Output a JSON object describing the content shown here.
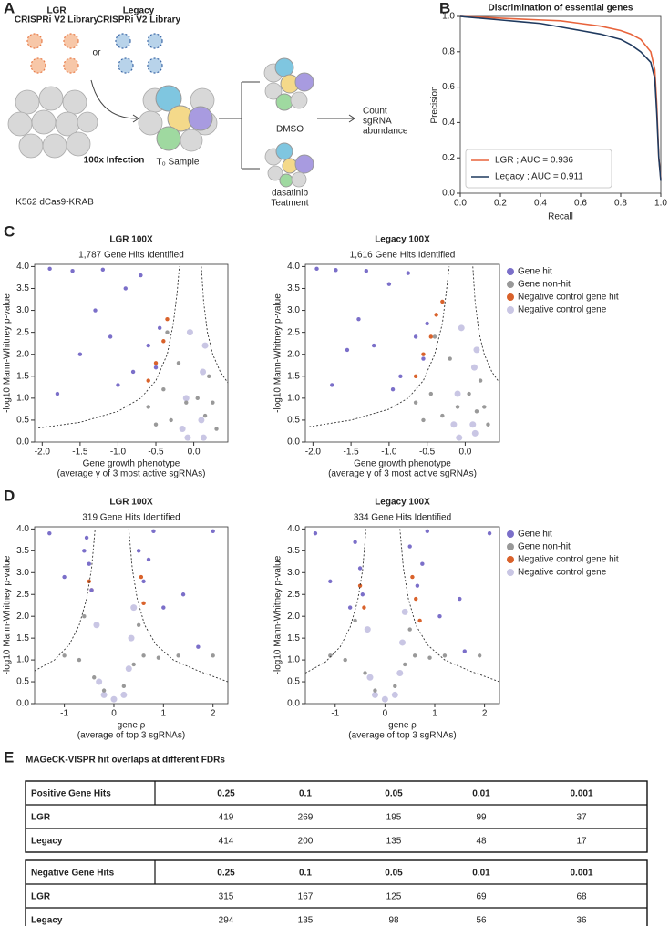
{
  "panel_labels": [
    "A",
    "B",
    "C",
    "D",
    "E"
  ],
  "diagram": {
    "lgr": "LGR",
    "lgr_library": "CRISPRi V2 Library",
    "legacy": "Legacy",
    "legacy_library": "CRISPRi V2 Library",
    "or": "or",
    "infection": "100x Infection",
    "cells": "K562 dCas9-KRAB",
    "t0": "T₀ Sample",
    "dmso": "DMSO",
    "dasatinib": "dasatinib",
    "treatment": "Teatment",
    "count": [
      "Count",
      "sgRNA",
      "abundance"
    ]
  },
  "chart_data": [
    {
      "type": "line",
      "title": "Discrimination of essential genes",
      "x_label": "Recall",
      "y_label": "Precision",
      "x": [
        0,
        0.1,
        0.2,
        0.3,
        0.4,
        0.5,
        0.6,
        0.7,
        0.8,
        0.85,
        0.9,
        0.95,
        0.97,
        0.98,
        0.99,
        1.0
      ],
      "series": [
        {
          "name": "LGR ; AUC = 0.936",
          "color": "#e8643c",
          "values": [
            1,
            0.995,
            0.99,
            0.985,
            0.98,
            0.975,
            0.96,
            0.945,
            0.92,
            0.9,
            0.87,
            0.8,
            0.7,
            0.5,
            0.2,
            0.08
          ]
        },
        {
          "name": "Legacy ; AUC = 0.911",
          "color": "#1f3a5f",
          "values": [
            1,
            0.99,
            0.98,
            0.97,
            0.96,
            0.94,
            0.92,
            0.9,
            0.87,
            0.84,
            0.8,
            0.74,
            0.65,
            0.45,
            0.2,
            0.07
          ]
        }
      ],
      "xlim": [
        0,
        1
      ],
      "ylim": [
        0,
        1
      ],
      "xticks": [
        {
          "value": 0,
          "label": "0.0"
        },
        0.2,
        0.4,
        0.6,
        0.8,
        {
          "value": 1,
          "label": "1.0"
        }
      ],
      "yticks": [
        {
          "value": 0,
          "label": "0.0"
        },
        0.2,
        0.4,
        0.6,
        0.8,
        {
          "value": 1,
          "label": "1.0"
        }
      ],
      "legend": "lower left"
    },
    {
      "type": "scatter",
      "title": "LGR 100X",
      "subtitle": "1,787 Gene Hits Identified",
      "x_label": "Gene growth phenotype",
      "x_sublabel": "(average γ of 3 most active sgRNAs)",
      "y_label": "-log10 Mann-Whitney p-value",
      "xlim": [
        -2.1,
        0.45
      ],
      "ylim": [
        0,
        4.05
      ],
      "xticks": [
        {
          "value": -2,
          "label": "-2.0"
        },
        -1.5,
        {
          "value": -1,
          "label": "-1.0"
        },
        -0.5,
        {
          "value": 0,
          "label": "0.0"
        }
      ],
      "yticks": [
        {
          "value": 0,
          "label": "0.0"
        },
        0.5,
        {
          "value": 1,
          "label": "1.0"
        },
        1.5,
        {
          "value": 2,
          "label": "2.0"
        },
        2.5,
        {
          "value": 3,
          "label": "3.0"
        },
        3.5,
        {
          "value": 4,
          "label": "4.0"
        }
      ],
      "series": [
        {
          "color": "#7b6fc9",
          "x": [
            -1.9,
            -1.6,
            -1.3,
            -1.1,
            -0.9,
            -0.8,
            -0.6,
            -0.5,
            -1.5,
            -1.0,
            -0.7,
            -0.45,
            -1.8,
            -1.2
          ],
          "values": [
            3.95,
            3.9,
            3.0,
            2.4,
            3.5,
            1.6,
            2.2,
            1.7,
            2.0,
            1.3,
            3.8,
            2.6,
            1.1,
            3.93
          ]
        },
        {
          "color": "#999999",
          "x": [
            -0.6,
            -0.4,
            -0.3,
            -0.2,
            -0.1,
            0.15,
            0.2,
            0.3,
            -0.35,
            -0.5,
            0.05,
            0.25
          ],
          "values": [
            0.8,
            1.2,
            0.5,
            1.8,
            0.9,
            0.6,
            1.5,
            0.3,
            2.5,
            0.4,
            1.0,
            0.9
          ]
        },
        {
          "color": "#d9622b",
          "x": [
            -0.6,
            -0.5,
            -0.4,
            -0.35
          ],
          "values": [
            1.4,
            1.8,
            2.3,
            2.8
          ]
        },
        {
          "color": "#c9c6e4",
          "x": [
            -0.15,
            -0.1,
            -0.05,
            0.1,
            0.12,
            0.15,
            -0.08,
            0.13
          ],
          "values": [
            0.3,
            1.0,
            2.5,
            0.5,
            1.6,
            2.2,
            0.1,
            0.1
          ]
        }
      ],
      "curves": [
        {
          "x": [
            -2.05,
            -1.5,
            -1.0,
            -0.7,
            -0.5,
            -0.35,
            -0.27,
            -0.22,
            -0.19
          ],
          "values": [
            0.32,
            0.45,
            0.7,
            1.0,
            1.4,
            2.0,
            2.7,
            3.4,
            4.0
          ]
        },
        {
          "x": [
            0.1,
            0.13,
            0.18,
            0.25,
            0.35,
            0.45
          ],
          "values": [
            4.0,
            3.2,
            2.5,
            2.0,
            1.6,
            1.35
          ]
        }
      ]
    },
    {
      "type": "scatter",
      "title": "Legacy 100X",
      "subtitle": "1,616 Gene Hits Identified",
      "x_label": "Gene growth phenotype",
      "x_sublabel": "(average γ of 3 most active sgRNAs)",
      "y_label": "-log10 Mann-Whitney p-value",
      "xlim": [
        -2.1,
        0.45
      ],
      "ylim": [
        0,
        4.05
      ],
      "xticks": [
        {
          "value": -2,
          "label": "-2.0"
        },
        -1.5,
        {
          "value": -1,
          "label": "-1.0"
        },
        -0.5,
        {
          "value": 0,
          "label": "0.0"
        }
      ],
      "yticks": [
        {
          "value": 0,
          "label": "0.0"
        },
        0.5,
        {
          "value": 1,
          "label": "1.0"
        },
        1.5,
        {
          "value": 2,
          "label": "2.0"
        },
        2.5,
        {
          "value": 3,
          "label": "3.0"
        },
        3.5,
        {
          "value": 4,
          "label": "4.0"
        }
      ],
      "series": [
        {
          "name": "Gene hit",
          "color": "#7b6fc9",
          "x": [
            -1.95,
            -1.7,
            -1.4,
            -1.2,
            -1.0,
            -0.85,
            -0.65,
            -0.55,
            -1.55,
            -0.95,
            -0.75,
            -0.5,
            -1.75,
            -1.3
          ],
          "values": [
            3.95,
            3.92,
            2.8,
            2.2,
            3.6,
            1.5,
            2.4,
            1.9,
            2.1,
            1.2,
            3.85,
            2.7,
            1.3,
            3.9
          ]
        },
        {
          "name": "Gene non-hit",
          "color": "#999999",
          "x": [
            -0.65,
            -0.45,
            -0.3,
            -0.2,
            -0.1,
            0.15,
            0.2,
            0.3,
            -0.4,
            -0.55,
            0.05,
            0.25
          ],
          "values": [
            0.9,
            1.1,
            0.6,
            1.9,
            0.8,
            0.7,
            1.4,
            0.4,
            2.4,
            0.5,
            1.1,
            0.8
          ]
        },
        {
          "name": "Negative control gene hit",
          "color": "#d9622b",
          "x": [
            -0.65,
            -0.55,
            -0.45,
            -0.38,
            -0.3
          ],
          "values": [
            1.5,
            2.0,
            2.4,
            2.9,
            3.2
          ]
        },
        {
          "name": "Negative control gene",
          "color": "#c9c6e4",
          "x": [
            -0.15,
            -0.1,
            -0.05,
            0.1,
            0.12,
            0.15,
            -0.08,
            0.13
          ],
          "values": [
            0.4,
            1.1,
            2.6,
            0.4,
            1.7,
            2.1,
            0.1,
            0.2
          ]
        }
      ],
      "curves": [
        {
          "x": [
            -2.05,
            -1.5,
            -1.0,
            -0.75,
            -0.55,
            -0.4,
            -0.3,
            -0.25,
            -0.21
          ],
          "values": [
            0.35,
            0.5,
            0.75,
            1.0,
            1.4,
            2.0,
            2.7,
            3.4,
            4.0
          ]
        },
        {
          "x": [
            0.1,
            0.13,
            0.18,
            0.25,
            0.35,
            0.45
          ],
          "values": [
            4.0,
            3.2,
            2.5,
            2.0,
            1.6,
            1.35
          ]
        }
      ],
      "legend": "right"
    },
    {
      "type": "scatter",
      "title": "LGR 100X",
      "subtitle": "319 Gene Hits Identified",
      "x_label": "gene ρ",
      "x_sublabel": "(average of top 3 sgRNAs)",
      "y_label": "-log10 Mann-Whitney p-value",
      "xlim": [
        -1.6,
        2.3
      ],
      "ylim": [
        0,
        4.05
      ],
      "xticks": [
        -1,
        0,
        1,
        2
      ],
      "yticks": [
        {
          "value": 0,
          "label": "0.0"
        },
        0.5,
        {
          "value": 1,
          "label": "1.0"
        },
        1.5,
        {
          "value": 2,
          "label": "2.0"
        },
        2.5,
        {
          "value": 3,
          "label": "3.0"
        },
        3.5,
        {
          "value": 4,
          "label": "4.0"
        }
      ],
      "series": [
        {
          "color": "#7b6fc9",
          "x": [
            -1.3,
            -0.55,
            -0.5,
            -0.45,
            -0.6,
            0.5,
            0.6,
            0.8,
            1.0,
            1.4,
            2.0,
            0.7,
            1.7,
            -1.0
          ],
          "values": [
            3.9,
            3.8,
            3.2,
            2.6,
            3.5,
            3.5,
            2.8,
            3.95,
            2.2,
            2.5,
            3.95,
            3.3,
            1.3,
            2.9
          ]
        },
        {
          "color": "#999999",
          "x": [
            -1.0,
            -0.7,
            -0.4,
            -0.2,
            0.2,
            0.4,
            0.6,
            0.9,
            1.3,
            2.0,
            -0.6,
            0.5
          ],
          "values": [
            1.1,
            1.0,
            0.6,
            0.3,
            0.4,
            0.9,
            1.1,
            1.05,
            1.1,
            1.1,
            2.0,
            1.8
          ]
        },
        {
          "color": "#d9622b",
          "x": [
            -0.5,
            -0.45,
            0.55,
            0.6
          ],
          "values": [
            2.8,
            2.6,
            2.9,
            2.3
          ]
        },
        {
          "color": "#c9c6e4",
          "x": [
            -0.3,
            -0.2,
            0.0,
            0.2,
            0.35,
            0.4,
            -0.35,
            0.3
          ],
          "values": [
            0.5,
            0.2,
            0.1,
            0.2,
            1.5,
            2.2,
            1.8,
            0.8
          ]
        }
      ],
      "curves": [
        {
          "x": [
            -1.6,
            -1.2,
            -0.9,
            -0.7,
            -0.55,
            -0.45,
            -0.38
          ],
          "values": [
            0.75,
            1.0,
            1.35,
            1.8,
            2.4,
            3.1,
            4.0
          ]
        },
        {
          "x": [
            0.3,
            0.37,
            0.47,
            0.62,
            0.85,
            1.2,
            1.7,
            2.3
          ],
          "values": [
            4.0,
            3.1,
            2.4,
            1.8,
            1.35,
            1.0,
            0.75,
            0.5
          ]
        }
      ]
    },
    {
      "type": "scatter",
      "title": "Legacy 100X",
      "subtitle": "334 Gene Hits Identified",
      "x_label": "gene ρ",
      "x_sublabel": "(average of top 3 sgRNAs)",
      "y_label": "-log10 Mann-Whitney p-value",
      "xlim": [
        -1.6,
        2.3
      ],
      "ylim": [
        0,
        4.05
      ],
      "xticks": [
        -1,
        0,
        1,
        2
      ],
      "yticks": [
        {
          "value": 0,
          "label": "0.0"
        },
        0.5,
        {
          "value": 1,
          "label": "1.0"
        },
        1.5,
        {
          "value": 2,
          "label": "2.0"
        },
        2.5,
        {
          "value": 3,
          "label": "3.0"
        },
        3.5,
        {
          "value": 4,
          "label": "4.0"
        }
      ],
      "series": [
        {
          "name": "Gene hit",
          "color": "#7b6fc9",
          "x": [
            -1.4,
            -0.6,
            -0.5,
            -0.45,
            -0.7,
            0.5,
            0.65,
            0.85,
            1.1,
            1.5,
            2.1,
            0.75,
            1.6,
            -1.1
          ],
          "values": [
            3.9,
            3.7,
            3.1,
            2.5,
            2.2,
            3.6,
            2.7,
            3.95,
            2.0,
            2.4,
            3.9,
            3.2,
            1.2,
            2.8
          ]
        },
        {
          "name": "Gene non-hit",
          "color": "#999999",
          "x": [
            -1.1,
            -0.8,
            -0.4,
            -0.2,
            0.2,
            0.4,
            0.6,
            0.9,
            1.2,
            1.9,
            -0.6,
            0.5
          ],
          "values": [
            1.1,
            1.0,
            0.7,
            0.3,
            0.4,
            0.9,
            1.1,
            1.05,
            1.1,
            1.1,
            1.9,
            1.7
          ]
        },
        {
          "name": "Negative control gene hit",
          "color": "#d9622b",
          "x": [
            -0.5,
            -0.42,
            0.55,
            0.62,
            0.7
          ],
          "values": [
            2.7,
            2.2,
            2.9,
            2.4,
            1.9
          ]
        },
        {
          "name": "Negative control gene",
          "color": "#c9c6e4",
          "x": [
            -0.3,
            -0.2,
            0.0,
            0.2,
            0.35,
            0.4,
            -0.35,
            0.3
          ],
          "values": [
            0.6,
            0.2,
            0.1,
            0.2,
            1.4,
            2.1,
            1.7,
            0.7
          ]
        }
      ],
      "curves": [
        {
          "x": [
            -1.6,
            -1.2,
            -0.9,
            -0.7,
            -0.55,
            -0.45,
            -0.38
          ],
          "values": [
            0.7,
            0.95,
            1.3,
            1.75,
            2.35,
            3.05,
            4.0
          ]
        },
        {
          "x": [
            0.3,
            0.37,
            0.47,
            0.62,
            0.85,
            1.2,
            1.7,
            2.3
          ],
          "values": [
            4.0,
            3.1,
            2.4,
            1.8,
            1.35,
            1.0,
            0.75,
            0.5
          ]
        }
      ],
      "legend": "right"
    }
  ],
  "tables": {
    "title": "MAGeCK-VISPR hit overlaps at different FDRs",
    "blocks": [
      {
        "header": [
          "Positive Gene Hits",
          "0.25",
          "0.1",
          "0.05",
          "0.01",
          "0.001"
        ],
        "rows": [
          [
            "LGR",
            419,
            269,
            195,
            99,
            37
          ],
          [
            "Legacy",
            414,
            200,
            135,
            48,
            17
          ]
        ]
      },
      {
        "header": [
          "Negative Gene Hits",
          "0.25",
          "0.1",
          "0.05",
          "0.01",
          "0.001"
        ],
        "rows": [
          [
            "LGR",
            315,
            167,
            125,
            69,
            68
          ],
          [
            "Legacy",
            294,
            135,
            98,
            56,
            36
          ]
        ]
      }
    ]
  }
}
